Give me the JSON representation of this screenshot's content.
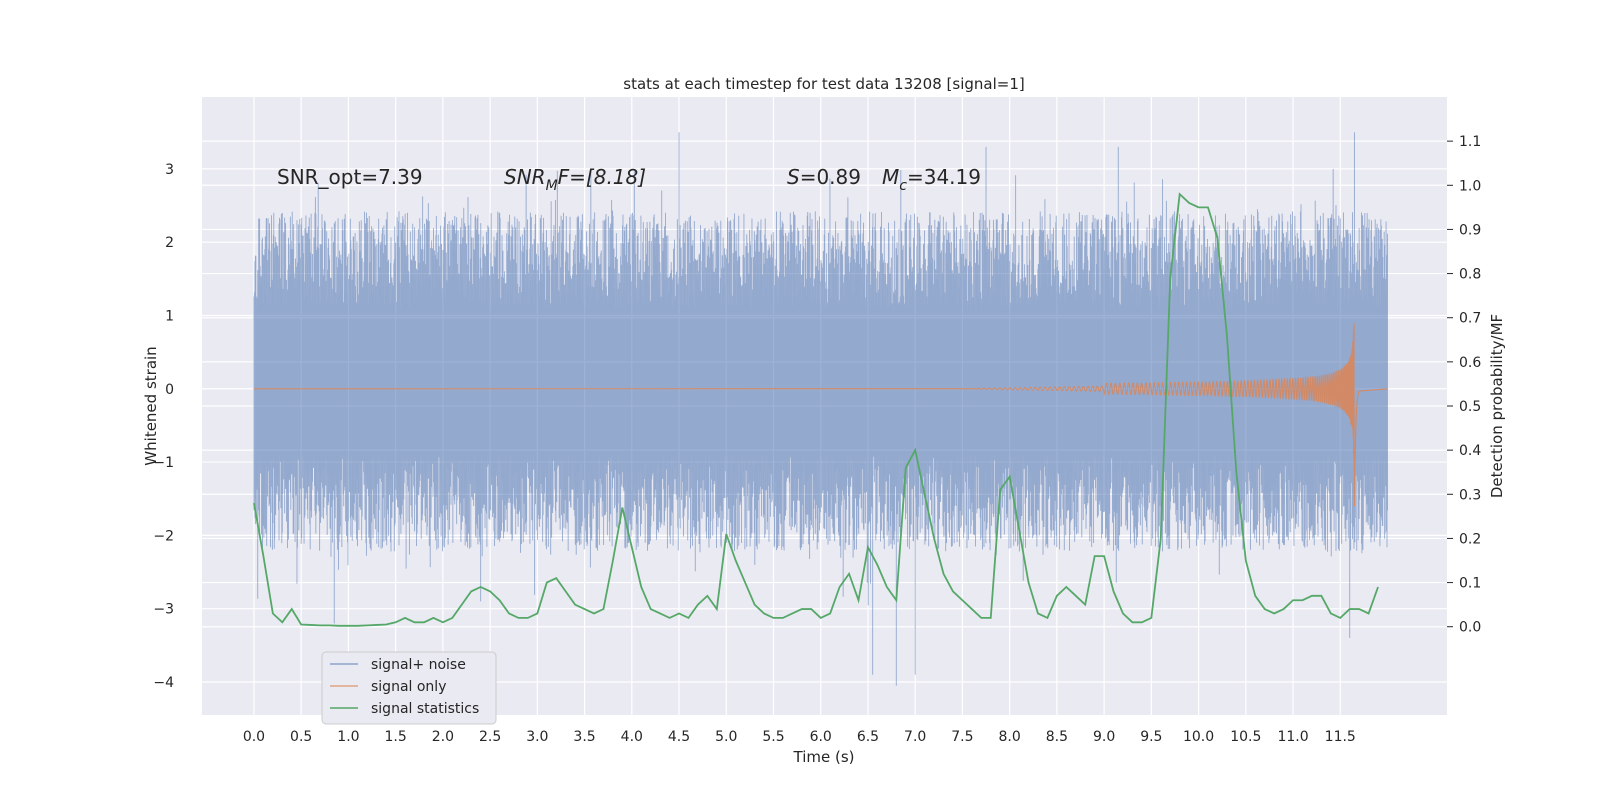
{
  "chart_data": {
    "type": "line",
    "title": "stats at each timestep for test data 13208 [signal=1]",
    "xlabel": "Time (s)",
    "ylabel_left": "Whitened strain",
    "ylabel_right": "Detection probability/MF",
    "xlim": [
      -0.55,
      12.63
    ],
    "ylim_left": [
      -4.45,
      3.98
    ],
    "ylim_right": [
      -0.2,
      1.2
    ],
    "x_ticks": [
      "0.0",
      "0.5",
      "1.0",
      "1.5",
      "2.0",
      "2.5",
      "3.0",
      "3.5",
      "4.0",
      "4.5",
      "5.0",
      "5.5",
      "6.0",
      "6.5",
      "7.0",
      "7.5",
      "8.0",
      "8.5",
      "9.0",
      "9.5",
      "10.0",
      "10.5",
      "11.0",
      "11.5"
    ],
    "y_ticks_left": [
      "−4",
      "−3",
      "−2",
      "−1",
      "0",
      "1",
      "2",
      "3"
    ],
    "y_ticks_right": [
      "0.0",
      "0.1",
      "0.2",
      "0.3",
      "0.4",
      "0.5",
      "0.6",
      "0.7",
      "0.8",
      "0.9",
      "1.0",
      "1.1"
    ],
    "grid": true,
    "legend_position": "lower-left",
    "series": [
      {
        "name": "signal+ noise",
        "color": "#4c72b0",
        "axis": "left",
        "time_range": [
          0.0,
          12.0
        ],
        "envelope_typical": [
          -2.0,
          2.2
        ],
        "extreme_values": [
          {
            "x": 0.85,
            "y": -3.2
          },
          {
            "x": 2.4,
            "y": -2.9
          },
          {
            "x": 4.5,
            "y": 3.5
          },
          {
            "x": 6.55,
            "y": -3.9
          },
          {
            "x": 6.8,
            "y": -4.05
          },
          {
            "x": 7.0,
            "y": -3.9
          },
          {
            "x": 7.75,
            "y": 3.3
          },
          {
            "x": 9.15,
            "y": 3.3
          },
          {
            "x": 11.6,
            "y": -3.4
          },
          {
            "x": 11.65,
            "y": 3.5
          }
        ]
      },
      {
        "name": "signal only",
        "color": "#dd8452",
        "axis": "left",
        "description": "chirp",
        "chirp_start": 7.5,
        "chirp_peak_x": 11.65,
        "chirp_peak_amplitude": 1.75,
        "chirp_end": 11.7
      },
      {
        "name": "signal statistics",
        "color": "#55a868",
        "axis": "right",
        "x": [
          0.0,
          0.1,
          0.2,
          0.3,
          0.4,
          0.5,
          0.6,
          0.7,
          0.8,
          0.9,
          1.0,
          1.1,
          1.2,
          1.3,
          1.4,
          1.5,
          1.6,
          1.7,
          1.8,
          1.9,
          2.0,
          2.1,
          2.2,
          2.3,
          2.4,
          2.5,
          2.6,
          2.7,
          2.8,
          2.9,
          3.0,
          3.1,
          3.2,
          3.3,
          3.4,
          3.5,
          3.6,
          3.7,
          3.8,
          3.9,
          4.0,
          4.1,
          4.2,
          4.3,
          4.4,
          4.5,
          4.6,
          4.7,
          4.8,
          4.9,
          5.0,
          5.1,
          5.2,
          5.3,
          5.4,
          5.5,
          5.6,
          5.7,
          5.8,
          5.9,
          6.0,
          6.1,
          6.2,
          6.3,
          6.4,
          6.5,
          6.6,
          6.7,
          6.8,
          6.9,
          7.0,
          7.1,
          7.2,
          7.3,
          7.4,
          7.5,
          7.6,
          7.7,
          7.8,
          7.9,
          8.0,
          8.1,
          8.2,
          8.3,
          8.4,
          8.5,
          8.6,
          8.7,
          8.8,
          8.9,
          9.0,
          9.1,
          9.2,
          9.3,
          9.4,
          9.5,
          9.6,
          9.7,
          9.8,
          9.9,
          10.0,
          10.1,
          10.2,
          10.3,
          10.4,
          10.5,
          10.6,
          10.7,
          10.8,
          10.9,
          11.0,
          11.1,
          11.2,
          11.3,
          11.4,
          11.5,
          11.6,
          11.7,
          11.8,
          11.9
        ],
        "values": [
          0.28,
          0.16,
          0.03,
          0.01,
          0.04,
          0.005,
          0.004,
          0.003,
          0.003,
          0.002,
          0.002,
          0.002,
          0.003,
          0.004,
          0.005,
          0.01,
          0.02,
          0.01,
          0.01,
          0.02,
          0.01,
          0.02,
          0.05,
          0.08,
          0.09,
          0.08,
          0.06,
          0.03,
          0.02,
          0.02,
          0.03,
          0.1,
          0.11,
          0.08,
          0.05,
          0.04,
          0.03,
          0.04,
          0.15,
          0.27,
          0.18,
          0.09,
          0.04,
          0.03,
          0.02,
          0.03,
          0.02,
          0.05,
          0.07,
          0.04,
          0.21,
          0.15,
          0.1,
          0.05,
          0.03,
          0.02,
          0.02,
          0.03,
          0.04,
          0.04,
          0.02,
          0.03,
          0.09,
          0.12,
          0.06,
          0.18,
          0.14,
          0.09,
          0.06,
          0.36,
          0.4,
          0.3,
          0.2,
          0.12,
          0.08,
          0.06,
          0.04,
          0.02,
          0.02,
          0.31,
          0.34,
          0.22,
          0.1,
          0.03,
          0.02,
          0.07,
          0.09,
          0.07,
          0.05,
          0.16,
          0.16,
          0.08,
          0.03,
          0.01,
          0.01,
          0.02,
          0.2,
          0.79,
          0.98,
          0.96,
          0.95,
          0.95,
          0.88,
          0.66,
          0.35,
          0.15,
          0.07,
          0.04,
          0.03,
          0.04,
          0.06,
          0.06,
          0.07,
          0.07,
          0.03,
          0.02,
          0.04,
          0.04,
          0.03,
          0.09
        ]
      }
    ],
    "annotations": [
      {
        "id": "snr_opt",
        "text": "SNR_opt=7.39"
      },
      {
        "id": "snr_mf",
        "main": "SNR",
        "sub": "M",
        "tail": "F=[8.18]"
      },
      {
        "id": "s",
        "main": "S",
        "tail": "=0.89"
      },
      {
        "id": "mc",
        "main": "M",
        "sub": "c",
        "tail": "=34.19"
      }
    ]
  }
}
